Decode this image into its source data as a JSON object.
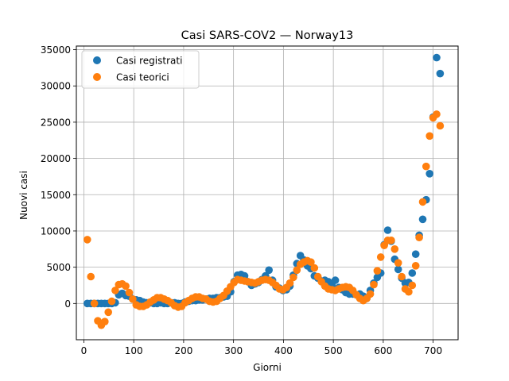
{
  "chart_data": {
    "type": "scatter",
    "title": "Casi SARS-COV2 — Norway13",
    "xlabel": "Giorni",
    "ylabel": "Nuovi casi",
    "xlim": [
      -15,
      750
    ],
    "ylim": [
      -5000,
      35500
    ],
    "xticks": [
      0,
      100,
      200,
      300,
      400,
      500,
      600,
      700
    ],
    "yticks": [
      0,
      5000,
      10000,
      15000,
      20000,
      25000,
      30000,
      35000
    ],
    "grid": true,
    "legend": "top-left",
    "series": [
      {
        "name": "Casi registrati",
        "color": "#1f77b4",
        "points": [
          [
            7,
            0
          ],
          [
            14,
            0
          ],
          [
            21,
            0
          ],
          [
            28,
            0
          ],
          [
            35,
            0
          ],
          [
            42,
            0
          ],
          [
            49,
            0
          ],
          [
            56,
            0
          ],
          [
            63,
            100
          ],
          [
            70,
            1200
          ],
          [
            77,
            1400
          ],
          [
            84,
            1100
          ],
          [
            91,
            1000
          ],
          [
            98,
            600
          ],
          [
            105,
            500
          ],
          [
            112,
            400
          ],
          [
            119,
            200
          ],
          [
            126,
            100
          ],
          [
            133,
            100
          ],
          [
            140,
            0
          ],
          [
            147,
            0
          ],
          [
            154,
            100
          ],
          [
            161,
            0
          ],
          [
            168,
            0
          ],
          [
            175,
            100
          ],
          [
            182,
            100
          ],
          [
            189,
            0
          ],
          [
            196,
            0
          ],
          [
            203,
            200
          ],
          [
            210,
            300
          ],
          [
            217,
            400
          ],
          [
            224,
            400
          ],
          [
            231,
            500
          ],
          [
            238,
            500
          ],
          [
            245,
            600
          ],
          [
            252,
            700
          ],
          [
            259,
            700
          ],
          [
            266,
            800
          ],
          [
            273,
            800
          ],
          [
            280,
            900
          ],
          [
            287,
            1000
          ],
          [
            294,
            1600
          ],
          [
            301,
            3000
          ],
          [
            308,
            3900
          ],
          [
            315,
            4000
          ],
          [
            322,
            3800
          ],
          [
            329,
            3000
          ],
          [
            336,
            2500
          ],
          [
            343,
            2700
          ],
          [
            350,
            2900
          ],
          [
            357,
            3300
          ],
          [
            364,
            3800
          ],
          [
            371,
            4600
          ],
          [
            378,
            3200
          ],
          [
            385,
            2300
          ],
          [
            392,
            2100
          ],
          [
            399,
            1800
          ],
          [
            406,
            1900
          ],
          [
            413,
            2400
          ],
          [
            420,
            3900
          ],
          [
            427,
            5500
          ],
          [
            434,
            6600
          ],
          [
            441,
            6000
          ],
          [
            448,
            5200
          ],
          [
            455,
            4800
          ],
          [
            462,
            3800
          ],
          [
            469,
            3500
          ],
          [
            476,
            3100
          ],
          [
            483,
            3200
          ],
          [
            490,
            3000
          ],
          [
            497,
            2600
          ],
          [
            504,
            3200
          ],
          [
            511,
            2200
          ],
          [
            518,
            1900
          ],
          [
            525,
            1500
          ],
          [
            532,
            1300
          ],
          [
            539,
            1300
          ],
          [
            546,
            1200
          ],
          [
            553,
            1300
          ],
          [
            560,
            1000
          ],
          [
            567,
            700
          ],
          [
            574,
            1800
          ],
          [
            581,
            2800
          ],
          [
            588,
            3600
          ],
          [
            595,
            4200
          ],
          [
            602,
            8100
          ],
          [
            609,
            10100
          ],
          [
            616,
            8600
          ],
          [
            623,
            6100
          ],
          [
            630,
            4700
          ],
          [
            637,
            3500
          ],
          [
            644,
            2800
          ],
          [
            651,
            2900
          ],
          [
            658,
            4200
          ],
          [
            665,
            6800
          ],
          [
            672,
            9400
          ],
          [
            679,
            11600
          ],
          [
            686,
            14300
          ],
          [
            693,
            17900
          ],
          [
            700,
            25700
          ],
          [
            707,
            33900
          ],
          [
            714,
            31700
          ]
        ]
      },
      {
        "name": "Casi teorici",
        "color": "#ff7f0e",
        "points": [
          [
            7,
            8800
          ],
          [
            14,
            3700
          ],
          [
            21,
            0
          ],
          [
            28,
            -2400
          ],
          [
            35,
            -3000
          ],
          [
            42,
            -2500
          ],
          [
            49,
            -1200
          ],
          [
            56,
            300
          ],
          [
            63,
            1800
          ],
          [
            70,
            2600
          ],
          [
            77,
            2700
          ],
          [
            84,
            2400
          ],
          [
            91,
            1500
          ],
          [
            98,
            600
          ],
          [
            105,
            -200
          ],
          [
            112,
            -400
          ],
          [
            119,
            -400
          ],
          [
            126,
            -200
          ],
          [
            133,
            200
          ],
          [
            140,
            500
          ],
          [
            147,
            800
          ],
          [
            154,
            800
          ],
          [
            161,
            600
          ],
          [
            168,
            400
          ],
          [
            175,
            100
          ],
          [
            182,
            -300
          ],
          [
            189,
            -500
          ],
          [
            196,
            -400
          ],
          [
            203,
            100
          ],
          [
            210,
            400
          ],
          [
            217,
            700
          ],
          [
            224,
            900
          ],
          [
            231,
            900
          ],
          [
            238,
            700
          ],
          [
            245,
            600
          ],
          [
            252,
            300
          ],
          [
            259,
            200
          ],
          [
            266,
            300
          ],
          [
            273,
            700
          ],
          [
            280,
            1100
          ],
          [
            287,
            1700
          ],
          [
            294,
            2300
          ],
          [
            301,
            2900
          ],
          [
            308,
            3300
          ],
          [
            315,
            3200
          ],
          [
            322,
            3100
          ],
          [
            329,
            3000
          ],
          [
            336,
            2900
          ],
          [
            343,
            2800
          ],
          [
            350,
            3000
          ],
          [
            357,
            3200
          ],
          [
            364,
            3300
          ],
          [
            371,
            3200
          ],
          [
            378,
            2900
          ],
          [
            385,
            2500
          ],
          [
            392,
            2000
          ],
          [
            399,
            1900
          ],
          [
            406,
            2200
          ],
          [
            413,
            2800
          ],
          [
            420,
            3600
          ],
          [
            427,
            4600
          ],
          [
            434,
            5400
          ],
          [
            441,
            5700
          ],
          [
            448,
            5900
          ],
          [
            455,
            5700
          ],
          [
            462,
            4900
          ],
          [
            469,
            3700
          ],
          [
            476,
            3000
          ],
          [
            483,
            2400
          ],
          [
            490,
            2000
          ],
          [
            497,
            1900
          ],
          [
            504,
            1800
          ],
          [
            511,
            2000
          ],
          [
            518,
            2200
          ],
          [
            525,
            2300
          ],
          [
            532,
            2200
          ],
          [
            539,
            1800
          ],
          [
            546,
            1200
          ],
          [
            553,
            700
          ],
          [
            560,
            400
          ],
          [
            567,
            700
          ],
          [
            574,
            1300
          ],
          [
            581,
            2600
          ],
          [
            588,
            4500
          ],
          [
            595,
            6400
          ],
          [
            602,
            8000
          ],
          [
            609,
            8700
          ],
          [
            616,
            8700
          ],
          [
            623,
            7500
          ],
          [
            630,
            5600
          ],
          [
            637,
            3700
          ],
          [
            644,
            2000
          ],
          [
            651,
            1600
          ],
          [
            658,
            2500
          ],
          [
            665,
            5200
          ],
          [
            672,
            9100
          ],
          [
            679,
            14000
          ],
          [
            686,
            18900
          ],
          [
            693,
            23100
          ],
          [
            700,
            25600
          ],
          [
            707,
            26100
          ],
          [
            714,
            24500
          ]
        ]
      }
    ]
  }
}
